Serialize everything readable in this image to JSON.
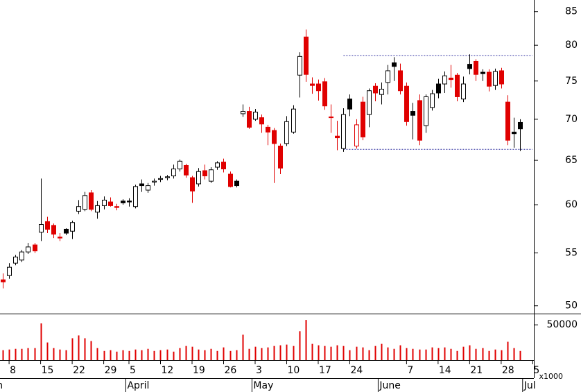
{
  "chart_data": {
    "type": "candlestick",
    "log_scale": true,
    "ylim": [
      49.3,
      86.8
    ],
    "yticks": [
      50,
      55,
      60,
      65,
      70,
      75,
      80,
      85
    ],
    "xlim": [
      -0.44,
      84.18
    ],
    "xticks": [
      {
        "value": 1,
        "label": "8"
      },
      {
        "value": 6,
        "label": "15"
      },
      {
        "value": 11,
        "label": "22"
      },
      {
        "value": 16,
        "label": "29"
      },
      {
        "value": 20,
        "label": "5"
      },
      {
        "value": 25,
        "label": "12"
      },
      {
        "value": 30,
        "label": "19"
      },
      {
        "value": 35,
        "label": "26"
      },
      {
        "value": 40,
        "label": "3"
      },
      {
        "value": 45,
        "label": "10"
      },
      {
        "value": 50,
        "label": "17"
      },
      {
        "value": 55,
        "label": "24"
      },
      {
        "value": 64,
        "label": "7"
      },
      {
        "value": 69,
        "label": "14"
      },
      {
        "value": 74,
        "label": "21"
      },
      {
        "value": 79,
        "label": "28"
      },
      {
        "value": 84,
        "label": "5"
      }
    ],
    "month_ticks": [
      {
        "value": -0.5,
        "label": "March"
      },
      {
        "value": 19.5,
        "label": "April"
      },
      {
        "value": 39.5,
        "label": "May"
      },
      {
        "value": 59.5,
        "label": "June"
      },
      {
        "value": 82.4,
        "label": "Jul"
      }
    ],
    "up_color": "#000000",
    "down_color": "#e00000",
    "open": [
      52.4,
      52.8,
      54,
      54.3,
      55.1,
      55.8,
      57.1,
      58.2,
      57.8,
      56.6,
      57.4,
      57.2,
      59.3,
      59.5,
      61.3,
      59.2,
      59.9,
      60.3,
      59.8,
      60.4,
      60.4,
      59.8,
      62.3,
      61.6,
      62.5,
      62.8,
      63,
      63.2,
      64,
      64.4,
      63,
      62.3,
      63.8,
      62.6,
      64.2,
      64.8,
      63.4,
      62.6,
      70.7,
      71,
      70,
      70.2,
      69,
      68.6,
      66.7,
      67,
      68.4,
      75.8,
      81.2,
      74.6,
      74.6,
      74.9,
      70.3,
      67.9,
      66.4,
      72.6,
      66.7,
      72.2,
      70.6,
      74.3,
      73.2,
      74.8,
      77.5,
      76.4,
      74.3,
      71,
      72.4,
      69.2,
      71.5,
      74.6,
      74.6,
      75.4,
      75.8,
      72.6,
      77.3,
      77.7,
      76.2,
      76.2,
      74.4,
      76.4,
      72.2,
      68.4,
      69.6
    ],
    "high": [
      53,
      54,
      54.8,
      55.3,
      56,
      56,
      62.9,
      58.7,
      58,
      57,
      57.5,
      58.3,
      60.5,
      61.4,
      61.6,
      60.4,
      60.9,
      60.8,
      60.1,
      60.6,
      60.7,
      62.2,
      62.8,
      62.4,
      62.9,
      63.2,
      63.3,
      64.5,
      65.1,
      64.6,
      63.2,
      64.1,
      64.5,
      64.2,
      64.9,
      65.2,
      63.7,
      62.8,
      71.9,
      71.6,
      71.3,
      70.6,
      69.3,
      68.9,
      67,
      70.4,
      71.8,
      79,
      82.3,
      75.5,
      75.2,
      75.4,
      71.9,
      69.8,
      71.4,
      73.2,
      70,
      72.9,
      74,
      74.7,
      74.8,
      77.2,
      78.3,
      77.4,
      74.8,
      72.1,
      73.2,
      73.2,
      73.8,
      75.3,
      76.3,
      77.2,
      76.1,
      75.6,
      78.7,
      78,
      76.6,
      76.6,
      76.7,
      76.8,
      73.1,
      70.2,
      70
    ],
    "low": [
      51.6,
      52.5,
      53.8,
      54.1,
      54.9,
      55,
      56.2,
      57,
      56.5,
      56.2,
      56.8,
      56.4,
      59,
      59.3,
      59.3,
      58.5,
      59.5,
      59.8,
      59.4,
      60,
      59.8,
      59.6,
      61.4,
      61.3,
      62.1,
      62.5,
      62.7,
      62.9,
      63.7,
      63,
      60.2,
      62,
      62.8,
      62.4,
      63.9,
      63.6,
      61.9,
      61.9,
      70.3,
      68.8,
      69.8,
      68.3,
      66.8,
      62.4,
      63.4,
      66.7,
      68.2,
      72.8,
      74.9,
      73.3,
      72.4,
      71.2,
      68.3,
      66.2,
      66,
      70.4,
      66.4,
      67.4,
      69,
      72.3,
      71.9,
      73.2,
      75,
      73.2,
      69.2,
      67.5,
      66.8,
      68.3,
      71.1,
      72.7,
      73.4,
      74.1,
      72.3,
      72.2,
      75.9,
      75,
      75,
      73.6,
      73.8,
      74,
      66.8,
      66.5,
      66.1
    ],
    "close": [
      52.2,
      53.6,
      54.6,
      55.1,
      55.6,
      55.2,
      57.9,
      57.4,
      56.9,
      56.5,
      57,
      58.1,
      59.8,
      61,
      59.5,
      59.9,
      60.5,
      59.9,
      59.7,
      60.2,
      60.3,
      62,
      62.1,
      62.1,
      62.6,
      62.9,
      63.1,
      64,
      64.9,
      63.3,
      61.5,
      63.7,
      63.2,
      63.9,
      64.7,
      64,
      62,
      62.1,
      71,
      69,
      70.9,
      69.4,
      68.4,
      67,
      64.1,
      69.7,
      71.3,
      78.4,
      75.9,
      74.4,
      73.7,
      71.7,
      70.2,
      67.7,
      70.6,
      71.3,
      69.3,
      67.8,
      73.7,
      73.4,
      73.9,
      76.4,
      77,
      73.7,
      69.7,
      70.5,
      67.4,
      72.9,
      73.3,
      73.4,
      75.7,
      75.2,
      72.9,
      74.6,
      76.7,
      75.9,
      76,
      74.3,
      76.3,
      74.6,
      67.4,
      68.2,
      68.8
    ],
    "volume": [
      14000,
      15000,
      16000,
      16000,
      17000,
      17000,
      52000,
      25000,
      17000,
      15000,
      14000,
      31000,
      35000,
      31000,
      27000,
      17000,
      13000,
      14000,
      12000,
      14000,
      13000,
      15000,
      14000,
      16000,
      13000,
      14000,
      15000,
      12000,
      17000,
      20000,
      19000,
      15000,
      14000,
      16000,
      13000,
      18000,
      13000,
      14000,
      36000,
      16000,
      19000,
      17000,
      18000,
      20000,
      21000,
      22000,
      20000,
      41000,
      57000,
      23000,
      21000,
      20000,
      19000,
      21000,
      20000,
      14000,
      19000,
      18000,
      14000,
      20000,
      23000,
      18000,
      16000,
      21000,
      17000,
      16000,
      15000,
      15000,
      18000,
      17000,
      18000,
      16000,
      13000,
      19000,
      21000,
      16000,
      17000,
      13000,
      15000,
      14000,
      26000,
      17000,
      13000
    ],
    "volume_color": "#e00000",
    "volume_ylim": [
      0,
      62000
    ],
    "volume_yticks": [
      50000
    ],
    "volume_unit": "x1000",
    "levels": [
      {
        "value": 78.5,
        "start": 54
      },
      {
        "value": 66.3,
        "start": 54
      }
    ],
    "level_color": "#3030a0"
  }
}
